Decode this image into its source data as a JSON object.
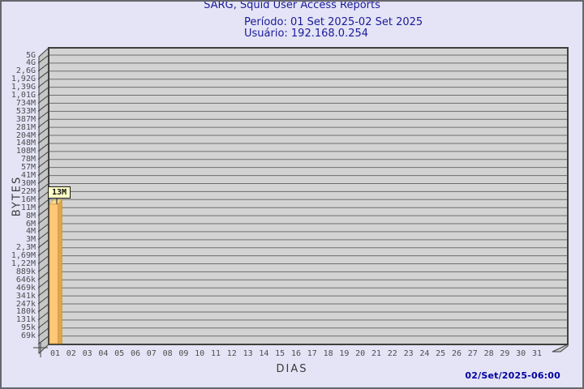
{
  "window": {
    "bg_color": "#E4E4F6",
    "frame_color": "#66666E"
  },
  "header": {
    "title": "SARG, Squid User Access Reports",
    "period_line": "Período: 01 Set 2025-02 Set 2025",
    "user_line": "Usuário: 192.168.0.254",
    "text_color": "#1A1A99"
  },
  "chart_data": {
    "type": "bar",
    "title": "SARG, Squid User Access Reports",
    "subtitle": [
      "Período: 01 Set 2025-02 Set 2025",
      "Usuário: 192.168.0.254"
    ],
    "xlabel": "DIAS",
    "ylabel": "BYTES",
    "categories": [
      "01",
      "02",
      "03",
      "04",
      "05",
      "06",
      "07",
      "08",
      "09",
      "10",
      "11",
      "12",
      "13",
      "14",
      "15",
      "16",
      "17",
      "18",
      "19",
      "20",
      "21",
      "22",
      "23",
      "24",
      "25",
      "26",
      "27",
      "28",
      "29",
      "30",
      "31"
    ],
    "values": [
      13000000,
      0,
      0,
      0,
      0,
      0,
      0,
      0,
      0,
      0,
      0,
      0,
      0,
      0,
      0,
      0,
      0,
      0,
      0,
      0,
      0,
      0,
      0,
      0,
      0,
      0,
      0,
      0,
      0,
      0,
      0
    ],
    "bar_value_label": "13M",
    "y_tick_labels": [
      "5G",
      "4G",
      "2,6G",
      "1,92G",
      "1,39G",
      "1,01G",
      "734M",
      "533M",
      "387M",
      "281M",
      "204M",
      "148M",
      "108M",
      "78M",
      "57M",
      "41M",
      "30M",
      "22M",
      "16M",
      "11M",
      "8M",
      "6M",
      "4M",
      "3M",
      "2,3M",
      "1,69M",
      "1,22M",
      "889k",
      "646k",
      "469k",
      "341k",
      "247k",
      "180k",
      "131k",
      "95k",
      "69k"
    ],
    "y_scale": "nonlinear (approx logarithmic, 69k to 5G)",
    "grid": "horizontal gridlines on, 3D left wall",
    "legend": "none",
    "colors": {
      "bar_front": "#FFC878",
      "bar_side": "#DFA64E",
      "bar_top": "#F3D992",
      "bar_edge": "#C8912D",
      "bar_label_bg": "#FFFFC6",
      "plot_bg": "#D3D3D3",
      "wall": "#C7C7C7",
      "grid_line": "#6E6E6E",
      "axis": "#3F3F3F",
      "tick_text": "#4D4D4D"
    }
  },
  "footer": {
    "generated": "02/Set/2025-06:00",
    "color": "#0000A0"
  }
}
